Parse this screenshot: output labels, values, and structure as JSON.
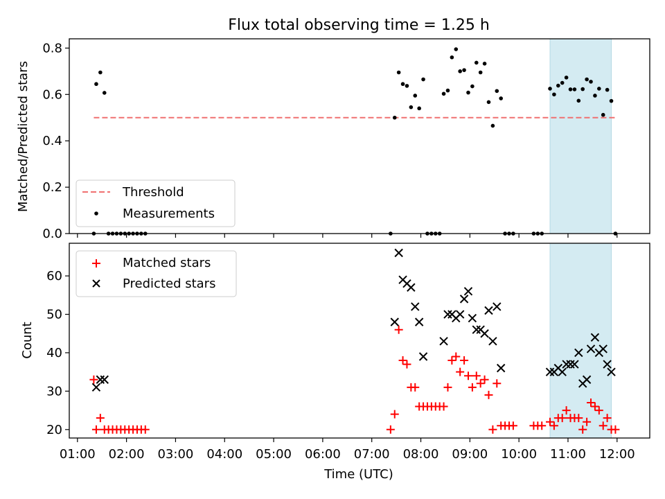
{
  "chart_data": [
    {
      "type": "scatter",
      "title": "Flux total observing time = 1.25 h",
      "xlabel": "",
      "ylabel": "Matched/Predicted stars",
      "xlim": [
        "00:50",
        "12:40"
      ],
      "ylim": [
        0,
        0.84
      ],
      "yticks": [
        "0.0",
        "0.2",
        "0.4",
        "0.6",
        "0.8"
      ],
      "shaded_interval": [
        "10:38",
        "11:53"
      ],
      "shade_color": "#d4ebf2",
      "threshold": {
        "name": "Threshold",
        "value": 0.5,
        "x_range": [
          "01:20",
          "12:00"
        ],
        "color": "#f07070"
      },
      "series": [
        {
          "name": "Measurements",
          "marker": "dot",
          "color": "#000000",
          "points": [
            [
              "01:20",
              0.0
            ],
            [
              "01:23",
              0.645
            ],
            [
              "01:28",
              0.695
            ],
            [
              "01:33",
              0.607
            ],
            [
              "01:38",
              0.0
            ],
            [
              "01:43",
              0.0
            ],
            [
              "01:48",
              0.0
            ],
            [
              "01:53",
              0.0
            ],
            [
              "01:58",
              0.0
            ],
            [
              "02:03",
              0.0
            ],
            [
              "02:08",
              0.0
            ],
            [
              "02:13",
              0.0
            ],
            [
              "02:18",
              0.0
            ],
            [
              "02:23",
              0.0
            ],
            [
              "07:23",
              0.0
            ],
            [
              "07:28",
              0.5
            ],
            [
              "07:33",
              0.695
            ],
            [
              "07:38",
              0.645
            ],
            [
              "07:43",
              0.637
            ],
            [
              "07:48",
              0.545
            ],
            [
              "07:53",
              0.595
            ],
            [
              "07:58",
              0.54
            ],
            [
              "08:03",
              0.665
            ],
            [
              "08:08",
              0.0
            ],
            [
              "08:13",
              0.0
            ],
            [
              "08:18",
              0.0
            ],
            [
              "08:23",
              0.0
            ],
            [
              "08:28",
              0.603
            ],
            [
              "08:33",
              0.617
            ],
            [
              "08:38",
              0.76
            ],
            [
              "08:43",
              0.795
            ],
            [
              "08:48",
              0.7
            ],
            [
              "08:53",
              0.705
            ],
            [
              "08:58",
              0.608
            ],
            [
              "09:03",
              0.635
            ],
            [
              "09:08",
              0.737
            ],
            [
              "09:13",
              0.695
            ],
            [
              "09:18",
              0.733
            ],
            [
              "09:23",
              0.567
            ],
            [
              "09:28",
              0.465
            ],
            [
              "09:33",
              0.615
            ],
            [
              "09:38",
              0.583
            ],
            [
              "09:43",
              0.0
            ],
            [
              "09:48",
              0.0
            ],
            [
              "09:53",
              0.0
            ],
            [
              "10:18",
              0.0
            ],
            [
              "10:23",
              0.0
            ],
            [
              "10:28",
              0.0
            ],
            [
              "10:38",
              0.625
            ],
            [
              "10:43",
              0.6
            ],
            [
              "10:48",
              0.638
            ],
            [
              "10:53",
              0.65
            ],
            [
              "10:58",
              0.673
            ],
            [
              "11:03",
              0.622
            ],
            [
              "11:08",
              0.622
            ],
            [
              "11:13",
              0.573
            ],
            [
              "11:18",
              0.623
            ],
            [
              "11:23",
              0.665
            ],
            [
              "11:28",
              0.655
            ],
            [
              "11:33",
              0.595
            ],
            [
              "11:38",
              0.625
            ],
            [
              "11:43",
              0.512
            ],
            [
              "11:48",
              0.62
            ],
            [
              "11:53",
              0.572
            ],
            [
              "11:58",
              0.0
            ]
          ]
        }
      ],
      "legend_placement": "lower-left"
    },
    {
      "type": "scatter",
      "title": "",
      "xlabel": "Time (UTC)",
      "ylabel": "Count",
      "xlim": [
        "00:50",
        "12:40"
      ],
      "ylim": [
        17.8,
        68.5
      ],
      "yticks": [
        "20",
        "30",
        "40",
        "50",
        "60"
      ],
      "xticks": [
        "01:00",
        "02:00",
        "03:00",
        "04:00",
        "05:00",
        "06:00",
        "07:00",
        "08:00",
        "09:00",
        "10:00",
        "11:00",
        "12:00"
      ],
      "shaded_interval": [
        "10:38",
        "11:53"
      ],
      "shade_color": "#d4ebf2",
      "series": [
        {
          "name": "Matched stars",
          "marker": "plus",
          "color": "#ff0000",
          "points": [
            [
              "01:20",
              33
            ],
            [
              "01:23",
              20
            ],
            [
              "01:28",
              23
            ],
            [
              "01:33",
              20
            ],
            [
              "01:38",
              20
            ],
            [
              "01:43",
              20
            ],
            [
              "01:48",
              20
            ],
            [
              "01:53",
              20
            ],
            [
              "01:58",
              20
            ],
            [
              "02:03",
              20
            ],
            [
              "02:08",
              20
            ],
            [
              "02:13",
              20
            ],
            [
              "02:18",
              20
            ],
            [
              "02:23",
              20
            ],
            [
              "07:23",
              20
            ],
            [
              "07:28",
              24
            ],
            [
              "07:33",
              46
            ],
            [
              "07:38",
              38
            ],
            [
              "07:43",
              37
            ],
            [
              "07:48",
              31
            ],
            [
              "07:53",
              31
            ],
            [
              "07:58",
              26
            ],
            [
              "08:03",
              26
            ],
            [
              "08:08",
              26
            ],
            [
              "08:13",
              26
            ],
            [
              "08:18",
              26
            ],
            [
              "08:23",
              26
            ],
            [
              "08:28",
              26
            ],
            [
              "08:33",
              31
            ],
            [
              "08:38",
              38
            ],
            [
              "08:43",
              39
            ],
            [
              "08:48",
              35
            ],
            [
              "08:53",
              38
            ],
            [
              "08:58",
              34
            ],
            [
              "09:03",
              31
            ],
            [
              "09:08",
              34
            ],
            [
              "09:13",
              32
            ],
            [
              "09:18",
              33
            ],
            [
              "09:23",
              29
            ],
            [
              "09:28",
              20
            ],
            [
              "09:33",
              32
            ],
            [
              "09:38",
              21
            ],
            [
              "09:43",
              21
            ],
            [
              "09:48",
              21
            ],
            [
              "09:53",
              21
            ],
            [
              "10:18",
              21
            ],
            [
              "10:23",
              21
            ],
            [
              "10:28",
              21
            ],
            [
              "10:38",
              22
            ],
            [
              "10:43",
              21
            ],
            [
              "10:48",
              23
            ],
            [
              "10:53",
              23
            ],
            [
              "10:58",
              25
            ],
            [
              "11:03",
              23
            ],
            [
              "11:08",
              23
            ],
            [
              "11:13",
              23
            ],
            [
              "11:18",
              20
            ],
            [
              "11:23",
              22
            ],
            [
              "11:28",
              27
            ],
            [
              "11:33",
              26
            ],
            [
              "11:38",
              25
            ],
            [
              "11:43",
              21
            ],
            [
              "11:48",
              23
            ],
            [
              "11:53",
              20
            ],
            [
              "11:58",
              20
            ]
          ]
        },
        {
          "name": "Predicted stars",
          "marker": "x",
          "color": "#000000",
          "points": [
            [
              "01:23",
              31
            ],
            [
              "01:28",
              33
            ],
            [
              "01:33",
              33
            ],
            [
              "07:28",
              48
            ],
            [
              "07:33",
              66
            ],
            [
              "07:38",
              59
            ],
            [
              "07:43",
              58
            ],
            [
              "07:48",
              57
            ],
            [
              "07:53",
              52
            ],
            [
              "07:58",
              48
            ],
            [
              "08:03",
              39
            ],
            [
              "08:28",
              43
            ],
            [
              "08:33",
              50
            ],
            [
              "08:38",
              50
            ],
            [
              "08:43",
              49
            ],
            [
              "08:48",
              50
            ],
            [
              "08:53",
              54
            ],
            [
              "08:58",
              56
            ],
            [
              "09:03",
              49
            ],
            [
              "09:08",
              46
            ],
            [
              "09:13",
              46
            ],
            [
              "09:18",
              45
            ],
            [
              "09:23",
              51
            ],
            [
              "09:28",
              43
            ],
            [
              "09:33",
              52
            ],
            [
              "09:38",
              36
            ],
            [
              "10:38",
              35
            ],
            [
              "10:43",
              35
            ],
            [
              "10:48",
              36
            ],
            [
              "10:53",
              35
            ],
            [
              "10:58",
              37
            ],
            [
              "11:03",
              37
            ],
            [
              "11:08",
              37
            ],
            [
              "11:13",
              40
            ],
            [
              "11:18",
              32
            ],
            [
              "11:23",
              33
            ],
            [
              "11:28",
              41
            ],
            [
              "11:33",
              44
            ],
            [
              "11:38",
              40
            ],
            [
              "11:43",
              41
            ],
            [
              "11:48",
              37
            ],
            [
              "11:53",
              35
            ]
          ]
        }
      ],
      "legend_placement": "upper-left"
    }
  ]
}
